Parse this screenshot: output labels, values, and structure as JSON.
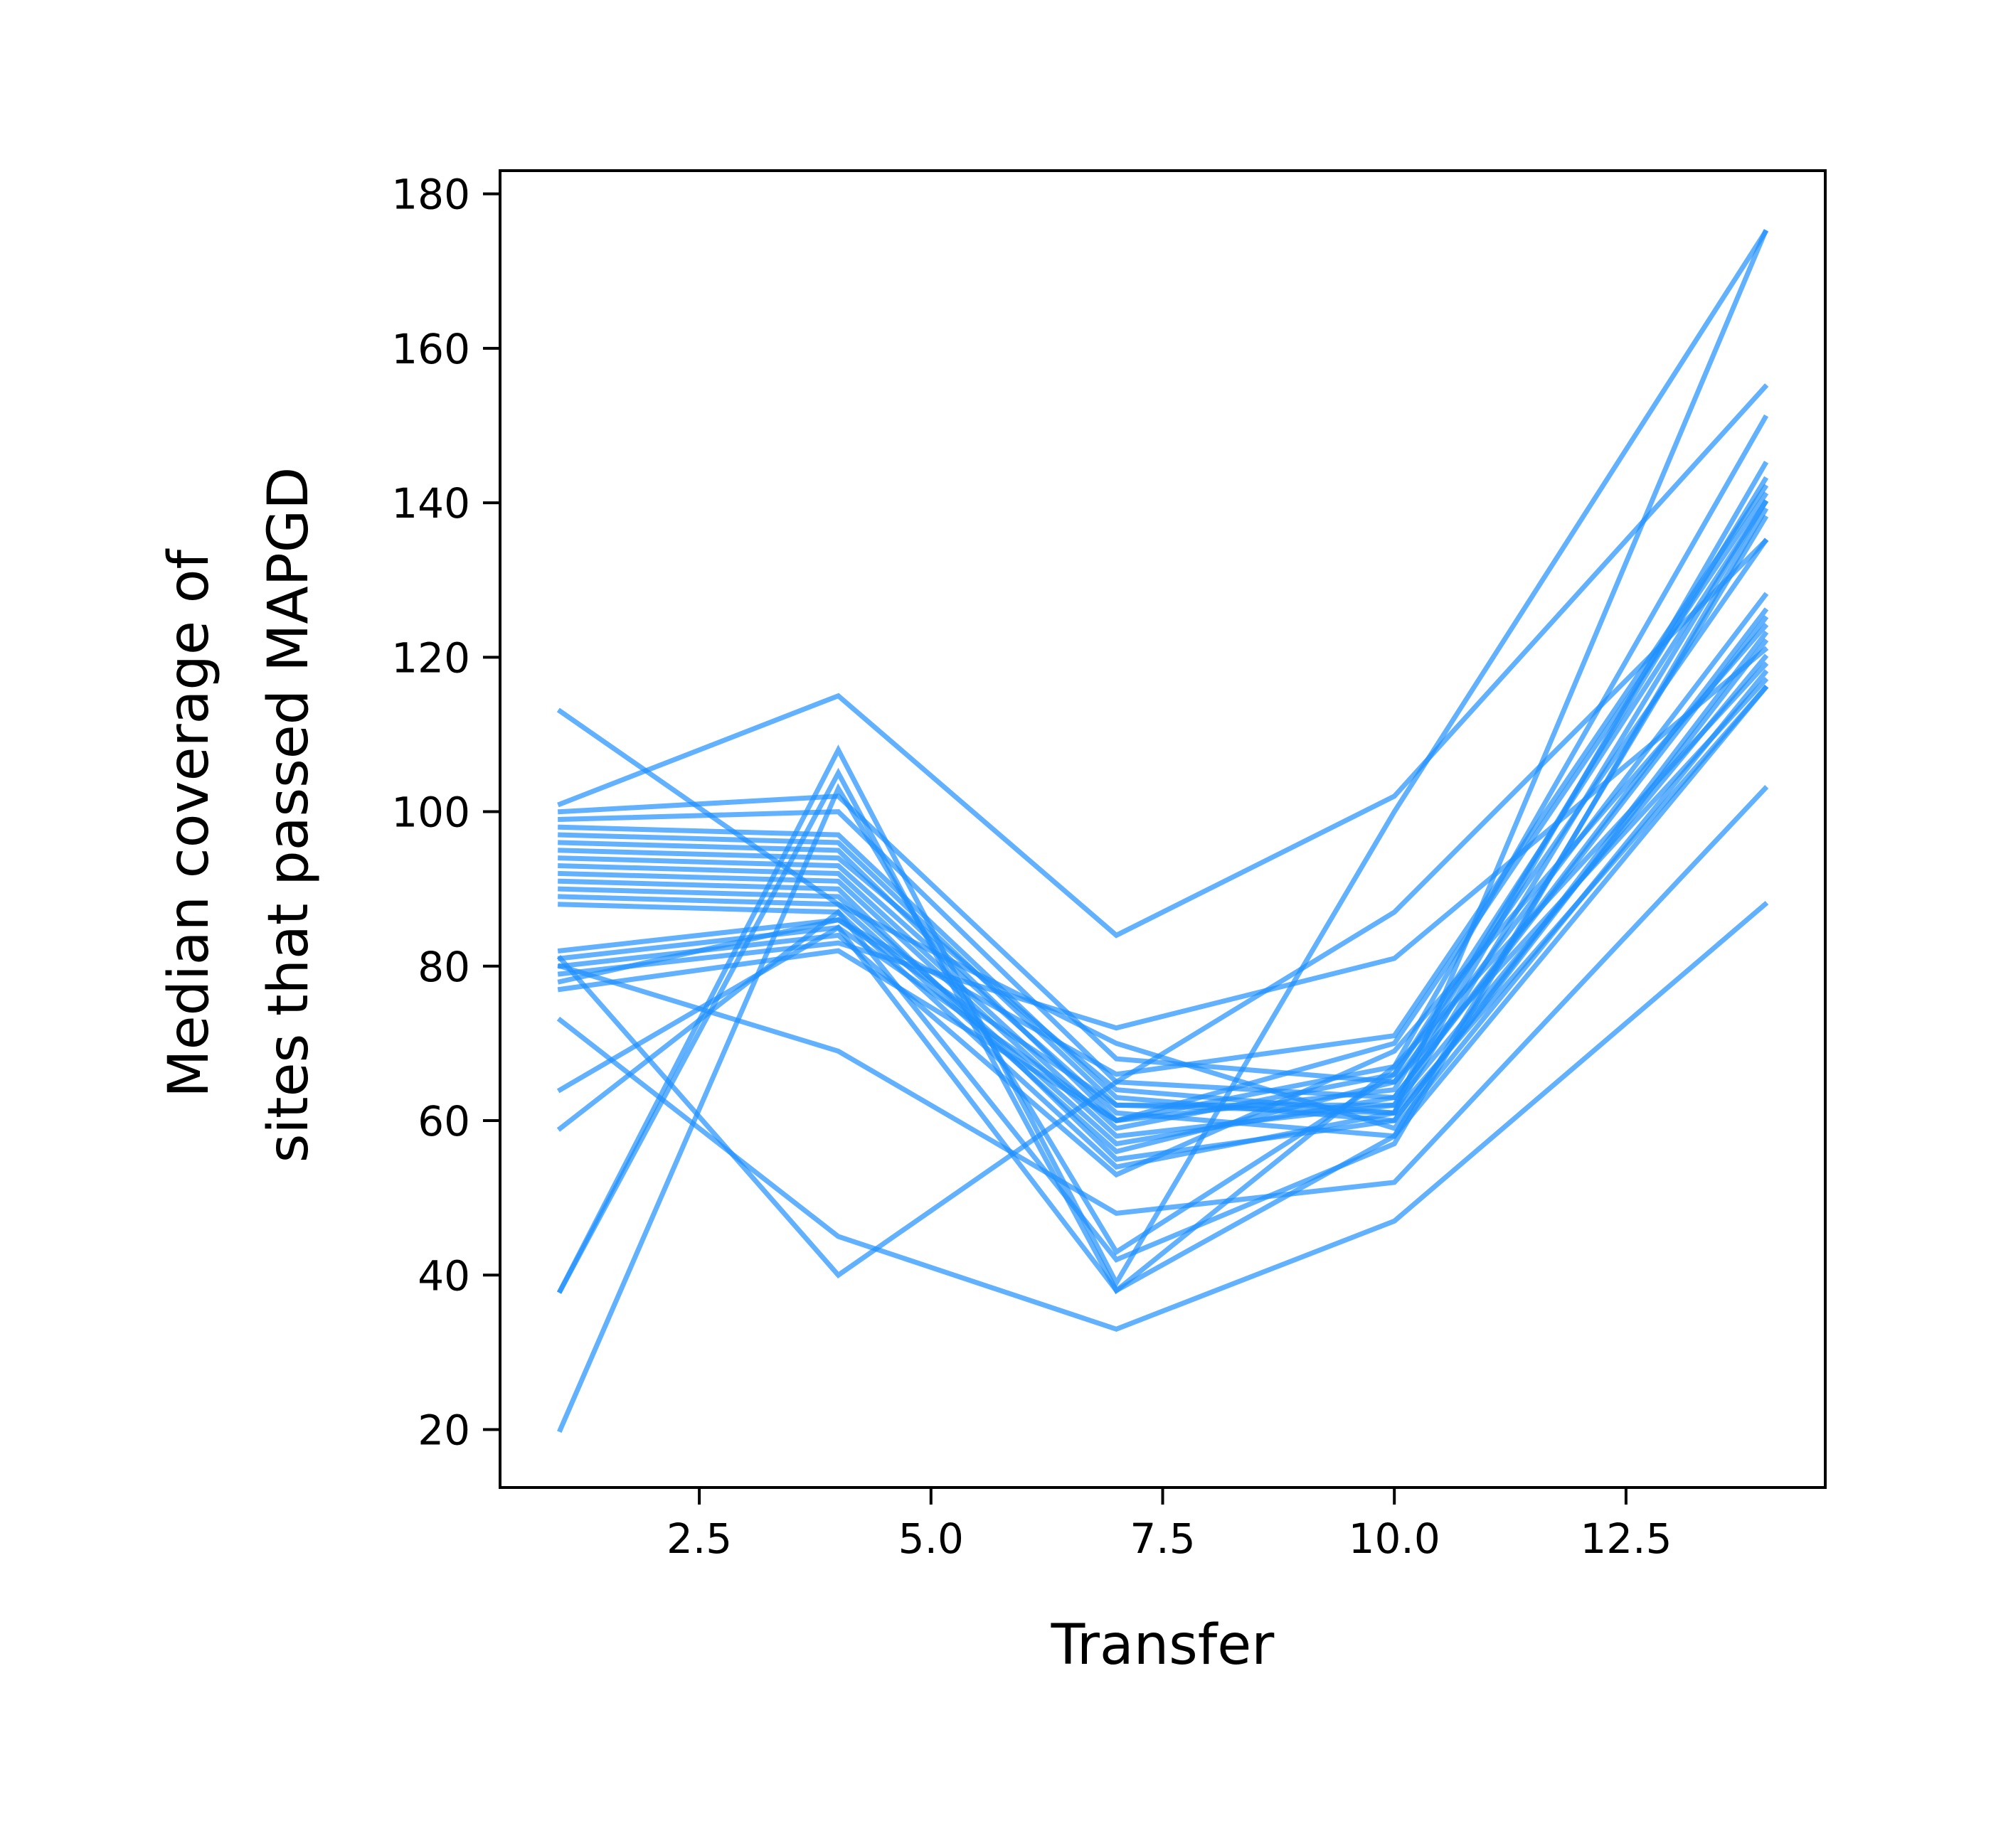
{
  "chart_data": {
    "type": "line",
    "title": "",
    "xlabel": "Transfer",
    "ylabel": [
      "Median coverage of",
      "sites that passed MAPGD"
    ],
    "x": [
      1,
      4,
      7,
      10,
      14
    ],
    "xlim": [
      0.35,
      14.65
    ],
    "ylim": [
      12.5,
      183
    ],
    "xticks": [
      2.5,
      5.0,
      7.5,
      10.0,
      12.5
    ],
    "xtick_labels": [
      "2.5",
      "5.0",
      "7.5",
      "10.0",
      "12.5"
    ],
    "yticks": [
      20,
      40,
      60,
      80,
      100,
      120,
      140,
      160,
      180
    ],
    "ytick_labels": [
      "20",
      "40",
      "60",
      "80",
      "100",
      "120",
      "140",
      "160",
      "180"
    ],
    "grid": false,
    "legend": "none",
    "line_color": "#1E90FF",
    "line_opacity": 0.7,
    "series": [
      {
        "values": [
          113,
          88,
          70,
          59,
          118
        ]
      },
      {
        "values": [
          101,
          115,
          84,
          102,
          155
        ]
      },
      {
        "values": [
          100,
          102,
          68,
          65,
          128
        ]
      },
      {
        "values": [
          99,
          100,
          65,
          63,
          125
        ]
      },
      {
        "values": [
          98,
          97,
          63,
          60,
          123
        ]
      },
      {
        "values": [
          97,
          96,
          62,
          62,
          120
        ]
      },
      {
        "values": [
          96,
          95,
          60,
          64,
          143
        ]
      },
      {
        "values": [
          95,
          94,
          64,
          61,
          140
        ]
      },
      {
        "values": [
          94,
          93,
          61,
          58,
          138
        ]
      },
      {
        "values": [
          93,
          92,
          59,
          66,
          135
        ]
      },
      {
        "values": [
          92,
          91,
          58,
          62,
          145
        ]
      },
      {
        "values": [
          91,
          90,
          55,
          60,
          122
        ]
      },
      {
        "values": [
          90,
          89,
          57,
          63,
          126
        ]
      },
      {
        "values": [
          89,
          88,
          56,
          65,
          117
        ]
      },
      {
        "values": [
          88,
          87,
          54,
          61,
          116
        ]
      },
      {
        "values": [
          82,
          86,
          62,
          61,
          175
        ]
      },
      {
        "values": [
          81,
          85,
          60,
          67,
          119
        ]
      },
      {
        "values": [
          80,
          84,
          53,
          69,
          124
        ]
      },
      {
        "values": [
          79,
          83,
          72,
          81,
          121
        ]
      },
      {
        "values": [
          78,
          86,
          66,
          71,
          142
        ]
      },
      {
        "values": [
          77,
          82,
          60,
          70,
          141
        ]
      },
      {
        "values": [
          80,
          69,
          48,
          52,
          103
        ]
      },
      {
        "values": [
          73,
          45,
          33,
          47,
          88
        ]
      },
      {
        "values": [
          64,
          85,
          38,
          58,
          116
        ]
      },
      {
        "values": [
          59,
          87,
          42,
          57,
          139
        ]
      },
      {
        "values": [
          38,
          108,
          39,
          100,
          175
        ]
      },
      {
        "values": [
          38,
          105,
          38,
          67,
          151
        ]
      },
      {
        "values": [
          20,
          103,
          43,
          66,
          140
        ]
      },
      {
        "values": [
          81,
          40,
          65,
          87,
          135
        ]
      }
    ]
  }
}
